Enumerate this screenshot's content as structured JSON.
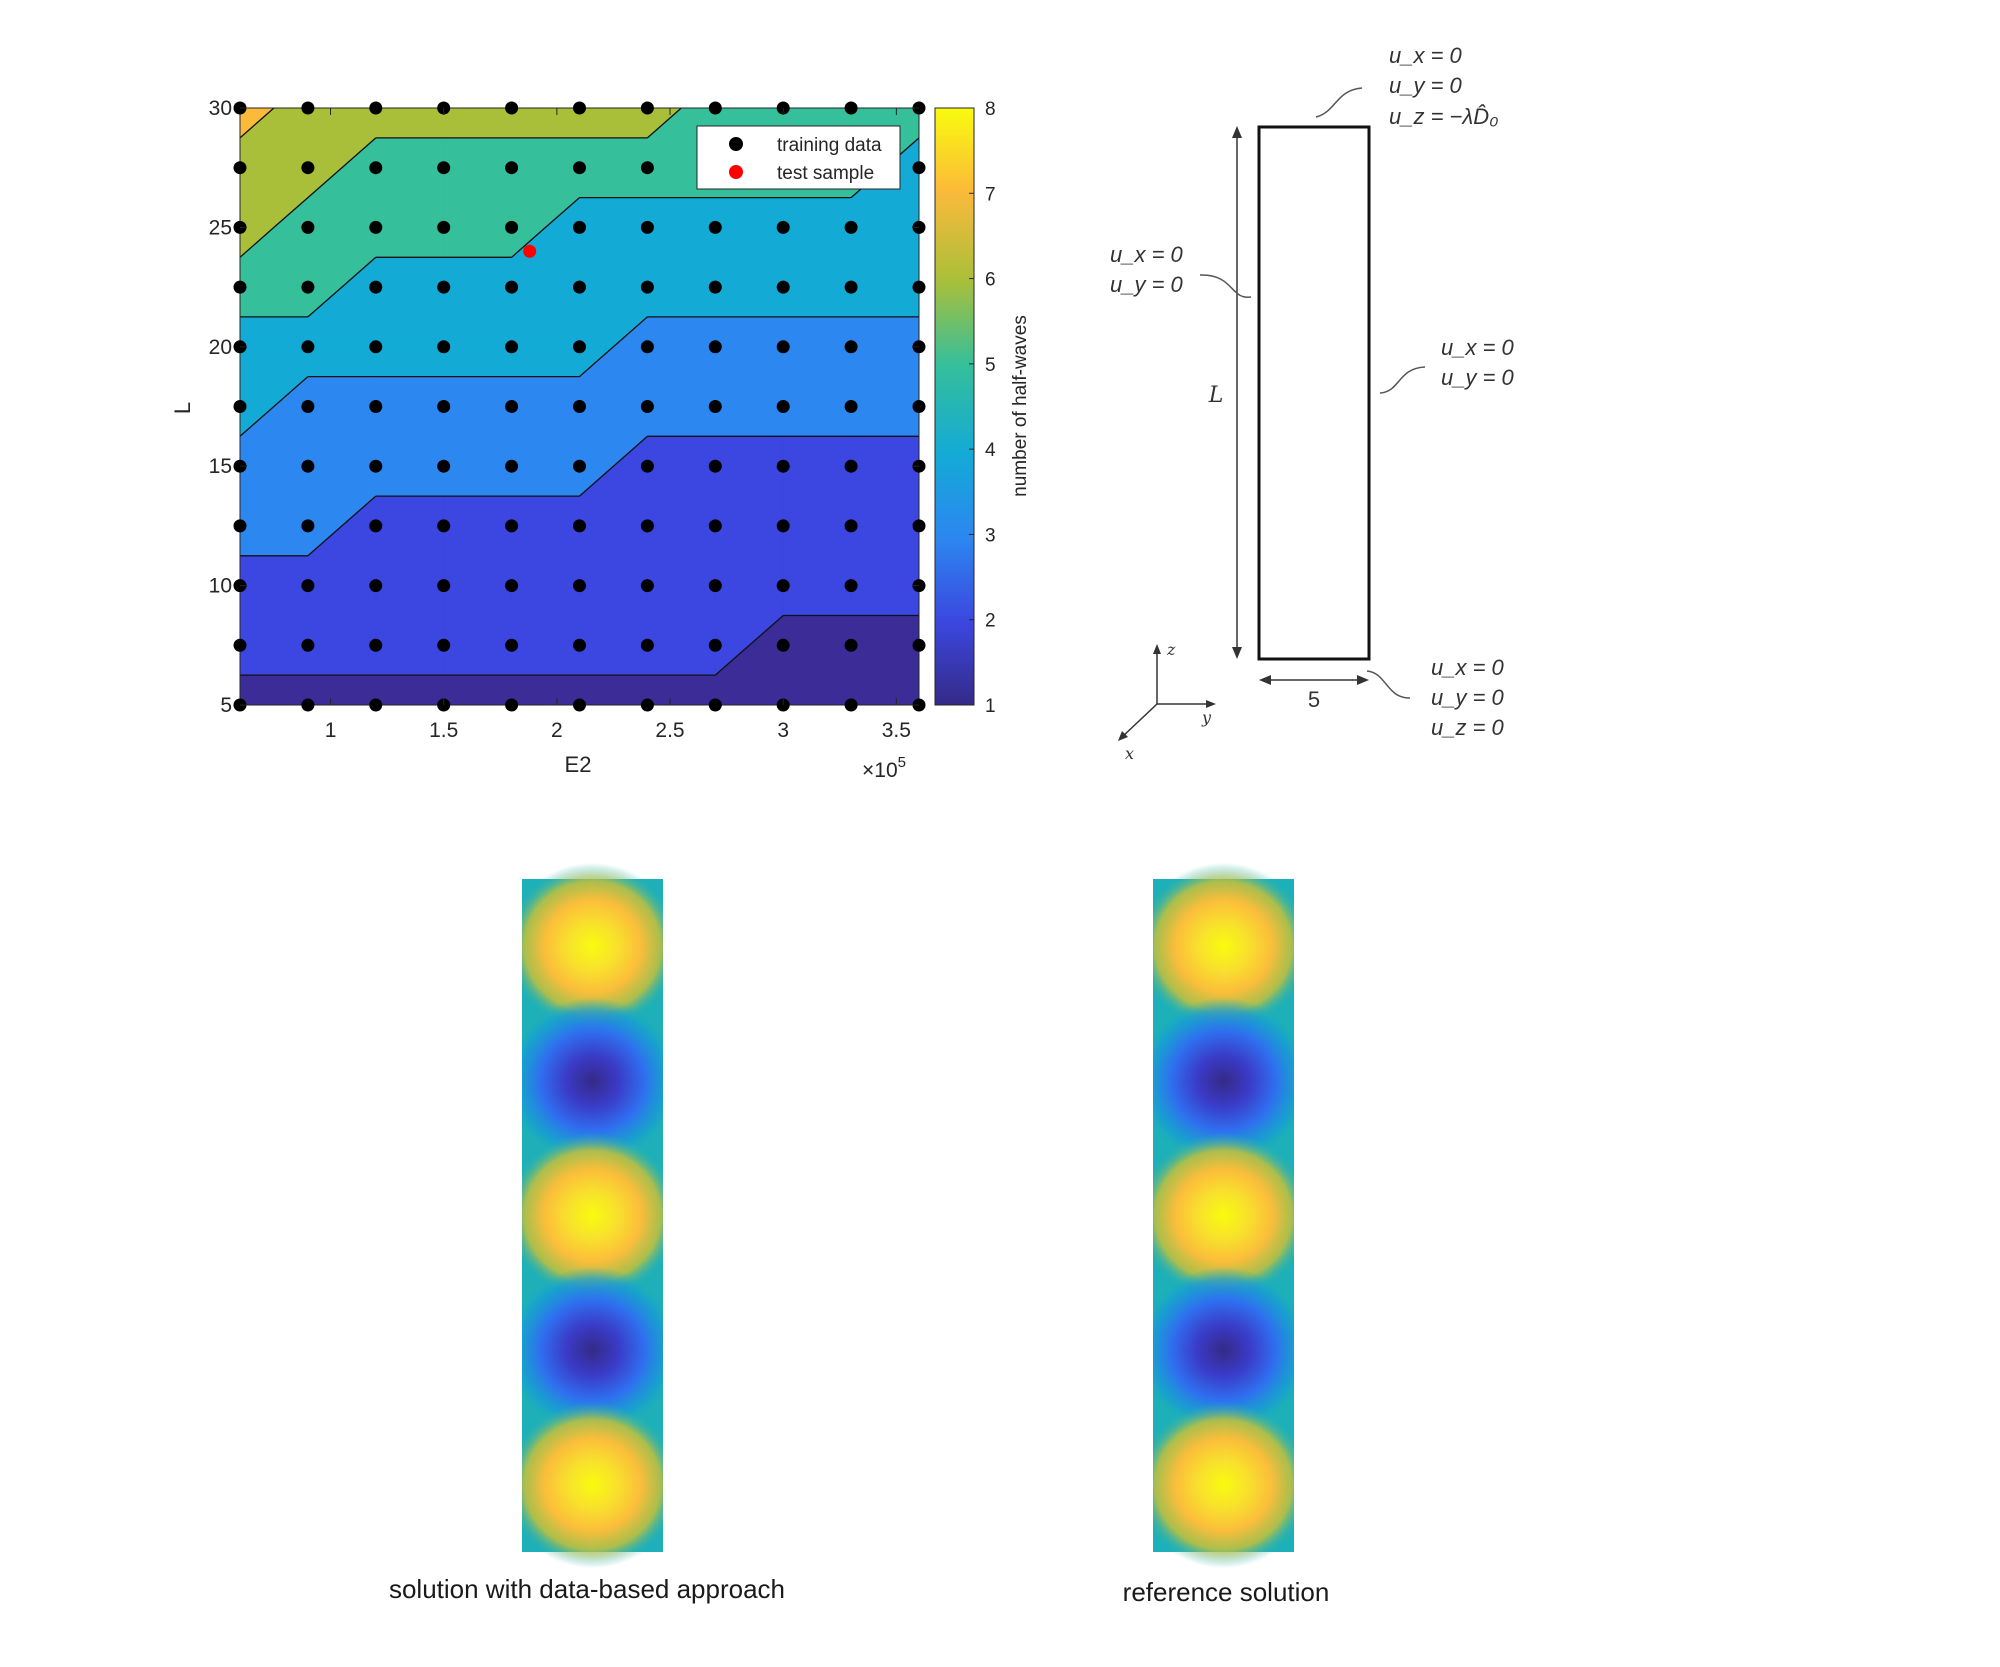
{
  "chart_data": [
    {
      "type": "contour",
      "title": "",
      "xlabel": "E2",
      "ylabel": "L",
      "x_exponent_label": "×10",
      "x_exponent_power": "5",
      "xlim": [
        0.6,
        3.6
      ],
      "ylim": [
        5,
        30
      ],
      "x_scale": 100000,
      "xticks": [
        1,
        1.5,
        2,
        2.5,
        3,
        3.5
      ],
      "xtick_labels": [
        "1",
        "1.5",
        "2",
        "2.5",
        "3",
        "3.5"
      ],
      "yticks": [
        5,
        10,
        15,
        20,
        25,
        30
      ],
      "ytick_labels": [
        "5",
        "10",
        "15",
        "20",
        "25",
        "30"
      ],
      "colorbar": {
        "label": "number of half-waves",
        "range": [
          1,
          8
        ],
        "ticks": [
          1,
          2,
          3,
          4,
          5,
          6,
          7,
          8
        ],
        "tick_labels": [
          "1",
          "2",
          "3",
          "4",
          "5",
          "6",
          "7",
          "8"
        ],
        "colormap": "parula"
      },
      "grid_x": [
        0.6,
        0.9,
        1.2,
        1.5,
        1.8,
        2.1,
        2.4,
        2.7,
        3.0,
        3.3,
        3.6
      ],
      "grid_y": [
        5,
        7.5,
        10,
        12.5,
        15,
        17.5,
        20,
        22.5,
        25,
        27.5,
        30
      ],
      "half_waves": [
        [
          1,
          1,
          1,
          1,
          1,
          1,
          1,
          1,
          1,
          1,
          1
        ],
        [
          2,
          2,
          2,
          2,
          2,
          2,
          2,
          2,
          1,
          1,
          1
        ],
        [
          2,
          2,
          2,
          2,
          2,
          2,
          2,
          2,
          2,
          2,
          2
        ],
        [
          3,
          3,
          2,
          2,
          2,
          2,
          2,
          2,
          2,
          2,
          2
        ],
        [
          3,
          3,
          3,
          3,
          3,
          3,
          2,
          2,
          2,
          2,
          2
        ],
        [
          4,
          3,
          3,
          3,
          3,
          3,
          3,
          3,
          3,
          3,
          3
        ],
        [
          4,
          4,
          4,
          4,
          4,
          4,
          3,
          3,
          3,
          3,
          3
        ],
        [
          5,
          5,
          4,
          4,
          4,
          4,
          4,
          4,
          4,
          4,
          4
        ],
        [
          6,
          5,
          5,
          5,
          5,
          4,
          4,
          4,
          4,
          4,
          4
        ],
        [
          6,
          6,
          5,
          5,
          5,
          5,
          5,
          5,
          5,
          5,
          4
        ],
        [
          7,
          6,
          6,
          6,
          6,
          6,
          6,
          5,
          5,
          5,
          5
        ]
      ],
      "series": [
        {
          "name": "training data",
          "color": "#000000",
          "points": "grid_x × grid_y"
        },
        {
          "name": "test sample",
          "color": "#ff0000",
          "points": [
            [
              1.88,
              24
            ]
          ]
        }
      ],
      "legend": {
        "placement": "top-right",
        "entries": [
          "training data",
          "test sample"
        ]
      }
    }
  ],
  "diagram": {
    "top_bc": [
      "u_x = 0",
      "u_y = 0",
      "u_z = −λD̂₀"
    ],
    "left_bc": [
      "u_x = 0",
      "u_y = 0"
    ],
    "right_bc": [
      "u_x = 0",
      "u_y = 0"
    ],
    "bottom_bc": [
      "u_x = 0",
      "u_y = 0",
      "u_z = 0"
    ],
    "height_label": "L",
    "width_label": "5",
    "axis_z": "z",
    "axis_y": "y",
    "axis_x": "x"
  },
  "images": {
    "left_caption": "solution with data-based approach",
    "right_caption": "reference solution",
    "mode_pattern": [
      "max",
      "min",
      "max",
      "min",
      "max"
    ]
  }
}
